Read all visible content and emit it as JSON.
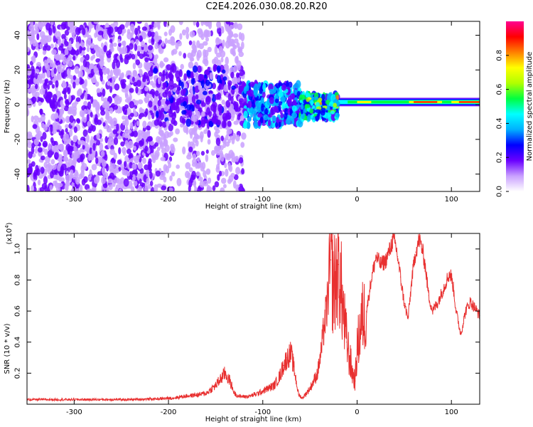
{
  "page": {
    "title": "C2E4.2026.030.08.20.R20"
  },
  "colors": {
    "signal": "#e83030",
    "background": "#ffffff",
    "axis": "#000000"
  },
  "chart_data": [
    {
      "type": "heatmap",
      "title": "",
      "xlabel": "Height of straight line (km)",
      "ylabel": "Frequency (Hz)",
      "xlim": [
        -350,
        130
      ],
      "ylim": [
        -50,
        48
      ],
      "x_ticks": [
        -300,
        -200,
        -100,
        0,
        100
      ],
      "x_tick_labels": [
        "-300",
        "-200",
        "-100",
        "0",
        "100"
      ],
      "y_ticks": [
        -40,
        -20,
        0,
        20,
        40
      ],
      "y_tick_labels": [
        "-40",
        "-20",
        "0",
        "20",
        "40"
      ],
      "colorbar": {
        "label": "Normalized spectral amplitude",
        "range": [
          0,
          1
        ],
        "ticks": [
          0.0,
          0.2,
          0.4,
          0.6,
          0.8
        ],
        "tick_labels": [
          "0.0",
          "0.2",
          "0.4",
          "0.6",
          "0.8"
        ],
        "colormap": [
          "#ffffff",
          "#c9a0ff",
          "#6a00ff",
          "#0000ff",
          "#00b0ff",
          "#00ffff",
          "#00ff40",
          "#b0ff00",
          "#ffff00",
          "#ff8000",
          "#ff0000",
          "#ff0090"
        ]
      },
      "regions": [
        {
          "x": [
            -350,
            -215
          ],
          "y": [
            -50,
            48
          ],
          "amplitude": 0.15
        },
        {
          "x": [
            -215,
            -120
          ],
          "y": [
            -50,
            48
          ],
          "amplitude": 0.12
        },
        {
          "x": [
            -215,
            -120
          ],
          "y": [
            -12,
            22
          ],
          "amplitude": 0.2
        },
        {
          "x": [
            -120,
            -60
          ],
          "y": [
            -12,
            12
          ],
          "amplitude": 0.35
        },
        {
          "x": [
            -60,
            -20
          ],
          "y": [
            -8,
            6
          ],
          "amplitude": 0.45
        },
        {
          "x": [
            -20,
            130
          ],
          "y": [
            -1,
            4
          ],
          "amplitude": 0.9
        }
      ],
      "grid": false
    },
    {
      "type": "line",
      "title": "",
      "xlabel": "Height of straight line (km)",
      "ylabel": "SNR (10 * v/v)",
      "y_multiplier_label": "(x10",
      "y_multiplier_exponent": "4",
      "y_multiplier_suffix": ")",
      "xlim": [
        -350,
        130
      ],
      "ylim": [
        0,
        1.1
      ],
      "x_ticks": [
        -300,
        -200,
        -100,
        0,
        100
      ],
      "x_tick_labels": [
        "-300",
        "-200",
        "-100",
        "0",
        "100"
      ],
      "y_ticks": [
        0.2,
        0.4,
        0.6,
        0.8,
        1.0
      ],
      "y_tick_labels": [
        "0.2",
        "0.4",
        "0.6",
        "0.8",
        "1.0"
      ],
      "grid": false,
      "series": [
        {
          "color": "#e83030",
          "x": [
            -350,
            -330,
            -300,
            -270,
            -240,
            -210,
            -195,
            -185,
            -170,
            -160,
            -150,
            -145,
            -140,
            -135,
            -130,
            -125,
            -115,
            -105,
            -95,
            -88,
            -82,
            -78,
            -74,
            -70,
            -66,
            -62,
            -58,
            -50,
            -42,
            -38,
            -35,
            -32,
            -28,
            -25,
            -22,
            -20,
            -17,
            -14,
            -11,
            -8,
            -5,
            -2,
            0,
            5,
            10,
            15,
            20,
            25,
            30,
            35,
            38,
            41,
            43,
            46,
            50,
            54,
            58,
            62,
            66,
            69,
            72,
            76,
            80,
            85,
            90,
            95,
            98,
            100,
            102,
            105,
            110,
            115,
            120,
            125,
            130
          ],
          "values": [
            0.03,
            0.03,
            0.03,
            0.03,
            0.03,
            0.035,
            0.04,
            0.05,
            0.06,
            0.07,
            0.12,
            0.16,
            0.2,
            0.15,
            0.07,
            0.05,
            0.05,
            0.07,
            0.1,
            0.12,
            0.18,
            0.25,
            0.3,
            0.33,
            0.2,
            0.06,
            0.04,
            0.1,
            0.2,
            0.34,
            0.5,
            0.62,
            0.93,
            0.75,
            0.83,
            0.9,
            0.75,
            0.55,
            0.4,
            0.3,
            0.2,
            0.15,
            0.35,
            0.55,
            0.6,
            0.8,
            0.95,
            0.9,
            0.92,
            1.0,
            1.06,
            1.02,
            0.95,
            0.82,
            0.65,
            0.55,
            0.8,
            0.98,
            1.06,
            1.0,
            0.9,
            0.7,
            0.6,
            0.65,
            0.72,
            0.8,
            0.84,
            0.82,
            0.75,
            0.6,
            0.45,
            0.6,
            0.66,
            0.62,
            0.57
          ]
        }
      ]
    }
  ]
}
